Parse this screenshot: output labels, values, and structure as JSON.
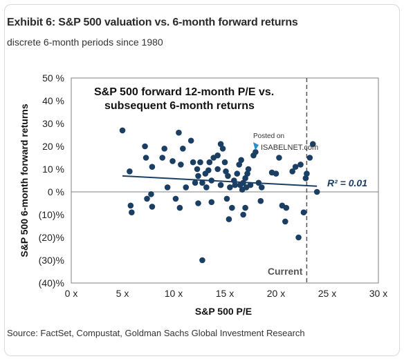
{
  "header": {
    "title": "Exhibit 6: S&P 500 valuation vs. 6-month forward returns",
    "subtitle": "discrete 6-month periods since 1980"
  },
  "footer": {
    "source": "Source: FactSet, Compustat, Goldman Sachs Global Investment Research"
  },
  "watermark": {
    "line1": "Posted on",
    "line2": "ISABELNET.com"
  },
  "colors": {
    "point": "#1b3e63",
    "line": "#1b3e63",
    "current_line": "#555555",
    "frame": "#7f7f7f"
  },
  "chart_data": {
    "type": "scatter",
    "title": "S&P 500 forward 12-month P/E vs. subsequent 6-month returns",
    "title_lines": [
      "S&P 500 forward 12-month P/E vs.",
      "subsequent 6-month returns"
    ],
    "xlabel": "S&P 500 P/E",
    "ylabel": "S&P 500 6-month forward returns",
    "xlim": [
      0,
      30
    ],
    "ylim": [
      -40,
      50
    ],
    "xticks": [
      0,
      5,
      10,
      15,
      20,
      25,
      30
    ],
    "xtick_labels": [
      "0 x",
      "5 x",
      "10 x",
      "15 x",
      "20 x",
      "25 x",
      "30 x"
    ],
    "yticks": [
      50,
      40,
      30,
      20,
      10,
      0,
      -10,
      -20,
      -30,
      -40
    ],
    "ytick_labels": [
      "50 %",
      "40 %",
      "30 %",
      "20 %",
      "10 %",
      "0 %",
      "(10)%",
      "(20)%",
      "(30)%",
      "(40)%"
    ],
    "grid": false,
    "current_line_x": 23,
    "current_label": "Current",
    "trendline": {
      "x": [
        5,
        24
      ],
      "y": [
        7,
        2.5
      ]
    },
    "r_squared_label": "R² = 0.01",
    "points": [
      [
        5.0,
        27
      ],
      [
        5.7,
        9
      ],
      [
        5.8,
        -6
      ],
      [
        5.9,
        -9
      ],
      [
        7.2,
        20
      ],
      [
        7.3,
        15
      ],
      [
        7.4,
        -3
      ],
      [
        7.8,
        -1
      ],
      [
        7.9,
        -6.5
      ],
      [
        7.9,
        11
      ],
      [
        8.9,
        15
      ],
      [
        9.1,
        19
      ],
      [
        9.4,
        2
      ],
      [
        9.9,
        13.5
      ],
      [
        10.2,
        -3
      ],
      [
        10.5,
        26
      ],
      [
        10.6,
        -7
      ],
      [
        10.7,
        12
      ],
      [
        10.9,
        19
      ],
      [
        11.2,
        2
      ],
      [
        11.7,
        22.5
      ],
      [
        11.9,
        13
      ],
      [
        12.1,
        4
      ],
      [
        12.3,
        10
      ],
      [
        12.4,
        -5
      ],
      [
        12.4,
        7
      ],
      [
        12.6,
        13
      ],
      [
        12.8,
        -30
      ],
      [
        12.8,
        4
      ],
      [
        13.1,
        8
      ],
      [
        13.2,
        2
      ],
      [
        13.4,
        9.5
      ],
      [
        13.5,
        13
      ],
      [
        13.7,
        -4.5
      ],
      [
        13.7,
        5
      ],
      [
        13.9,
        15
      ],
      [
        14.3,
        10
      ],
      [
        14.3,
        16
      ],
      [
        14.6,
        3
      ],
      [
        14.6,
        21
      ],
      [
        14.8,
        19
      ],
      [
        15.0,
        13
      ],
      [
        15.1,
        9
      ],
      [
        15.2,
        -3
      ],
      [
        15.3,
        7
      ],
      [
        15.4,
        -12
      ],
      [
        15.5,
        2
      ],
      [
        15.7,
        -7
      ],
      [
        15.9,
        5
      ],
      [
        16.0,
        3
      ],
      [
        16.2,
        8
      ],
      [
        16.4,
        12
      ],
      [
        16.5,
        3
      ],
      [
        16.6,
        14
      ],
      [
        16.7,
        1
      ],
      [
        16.8,
        -10
      ],
      [
        16.8,
        4
      ],
      [
        17.0,
        -7
      ],
      [
        17.0,
        6
      ],
      [
        17.1,
        2
      ],
      [
        17.2,
        8
      ],
      [
        17.3,
        10
      ],
      [
        17.5,
        3
      ],
      [
        17.8,
        16
      ],
      [
        18.0,
        17.5
      ],
      [
        18.3,
        4
      ],
      [
        18.5,
        -4
      ],
      [
        18.6,
        2
      ],
      [
        19.6,
        8.5
      ],
      [
        20.0,
        8
      ],
      [
        20.3,
        15
      ],
      [
        20.6,
        -6
      ],
      [
        20.9,
        -13
      ],
      [
        21.0,
        -7
      ],
      [
        21.6,
        9
      ],
      [
        21.9,
        11
      ],
      [
        22.2,
        -20
      ],
      [
        22.4,
        12
      ],
      [
        22.7,
        -9
      ],
      [
        22.9,
        6
      ],
      [
        23.0,
        8
      ],
      [
        23.3,
        15
      ],
      [
        23.6,
        21
      ],
      [
        24.0,
        0
      ]
    ]
  }
}
